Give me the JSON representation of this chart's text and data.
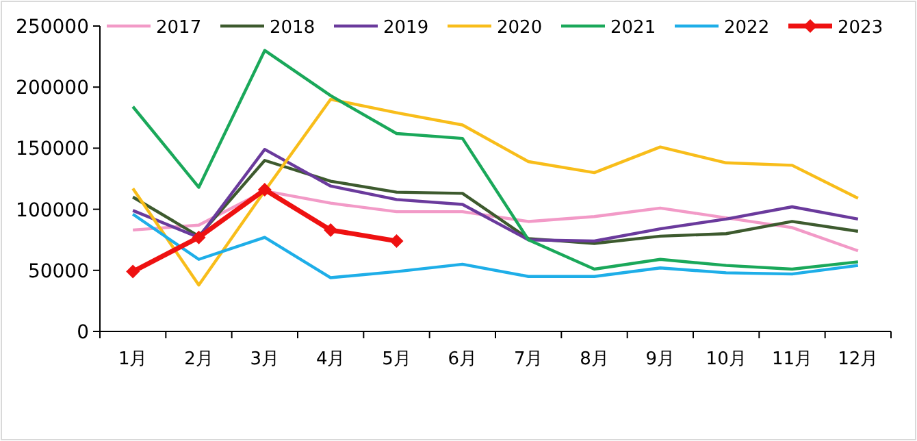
{
  "chart_data": {
    "type": "line",
    "categories": [
      "1月",
      "2月",
      "3月",
      "4月",
      "5月",
      "6月",
      "7月",
      "8月",
      "9月",
      "10月",
      "11月",
      "12月"
    ],
    "series": [
      {
        "name": "2017",
        "color": "#f29ac7",
        "values": [
          83000,
          87000,
          115000,
          105000,
          98000,
          98000,
          90000,
          94000,
          101000,
          93000,
          85000,
          66000
        ]
      },
      {
        "name": "2018",
        "color": "#3d5a2e",
        "values": [
          110000,
          78000,
          140000,
          123000,
          114000,
          113000,
          76000,
          72000,
          78000,
          80000,
          90000,
          82000
        ]
      },
      {
        "name": "2019",
        "color": "#6a3a9c",
        "values": [
          99000,
          77000,
          149000,
          119000,
          108000,
          104000,
          75000,
          74000,
          84000,
          92000,
          102000,
          92000
        ]
      },
      {
        "name": "2020",
        "color": "#f8bd1a",
        "values": [
          117000,
          38000,
          115000,
          190000,
          179000,
          169000,
          139000,
          130000,
          151000,
          138000,
          136000,
          109000
        ]
      },
      {
        "name": "2021",
        "color": "#1aa85a",
        "values": [
          184000,
          118000,
          230000,
          193000,
          162000,
          158000,
          75000,
          51000,
          59000,
          54000,
          51000,
          57000
        ]
      },
      {
        "name": "2022",
        "color": "#1eaee8",
        "values": [
          96000,
          59000,
          77000,
          44000,
          49000,
          55000,
          45000,
          45000,
          52000,
          48000,
          47000,
          54000
        ]
      },
      {
        "name": "2023",
        "color": "#ee1111",
        "marker": "diamond",
        "values": [
          49000,
          77000,
          116000,
          83000,
          74000,
          null,
          null,
          null,
          null,
          null,
          null,
          null
        ]
      }
    ],
    "ylim": [
      0,
      250000
    ],
    "yticks": [
      0,
      50000,
      100000,
      150000,
      200000,
      250000
    ],
    "legend": "top",
    "grid": false
  }
}
